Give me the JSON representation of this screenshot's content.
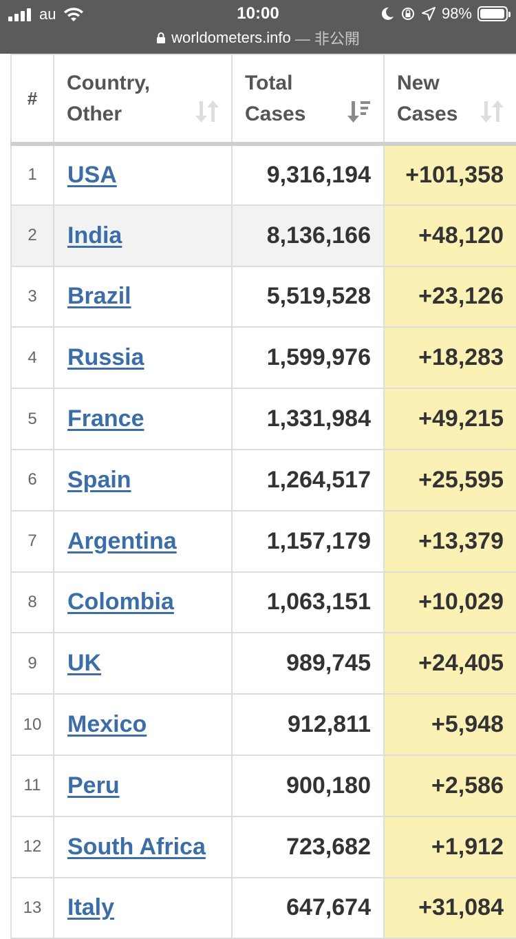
{
  "status_bar": {
    "carrier": "au",
    "time": "10:00",
    "battery": "98%",
    "battery_level": 0.98
  },
  "url_bar": {
    "domain": "worldometers.info",
    "suffix": "— 非公開"
  },
  "table": {
    "headers": {
      "rank": "#",
      "country_line1": "Country,",
      "country_line2": "Other",
      "total_line1": "Total",
      "total_line2": "Cases",
      "new_line1": "New",
      "new_line2": "Cases"
    },
    "rows": [
      {
        "rank": "1",
        "country": "USA",
        "total": "9,316,194",
        "new": "+101,358"
      },
      {
        "rank": "2",
        "country": "India",
        "total": "8,136,166",
        "new": "+48,120"
      },
      {
        "rank": "3",
        "country": "Brazil",
        "total": "5,519,528",
        "new": "+23,126"
      },
      {
        "rank": "4",
        "country": "Russia",
        "total": "1,599,976",
        "new": "+18,283"
      },
      {
        "rank": "5",
        "country": "France",
        "total": "1,331,984",
        "new": "+49,215"
      },
      {
        "rank": "6",
        "country": "Spain",
        "total": "1,264,517",
        "new": "+25,595"
      },
      {
        "rank": "7",
        "country": "Argentina",
        "total": "1,157,179",
        "new": "+13,379"
      },
      {
        "rank": "8",
        "country": "Colombia",
        "total": "1,063,151",
        "new": "+10,029"
      },
      {
        "rank": "9",
        "country": "UK",
        "total": "989,745",
        "new": "+24,405"
      },
      {
        "rank": "10",
        "country": "Mexico",
        "total": "912,811",
        "new": "+5,948"
      },
      {
        "rank": "11",
        "country": "Peru",
        "total": "900,180",
        "new": "+2,586"
      },
      {
        "rank": "12",
        "country": "South Africa",
        "total": "723,682",
        "new": "+1,912"
      },
      {
        "rank": "13",
        "country": "Italy",
        "total": "647,674",
        "new": "+31,084"
      }
    ]
  }
}
